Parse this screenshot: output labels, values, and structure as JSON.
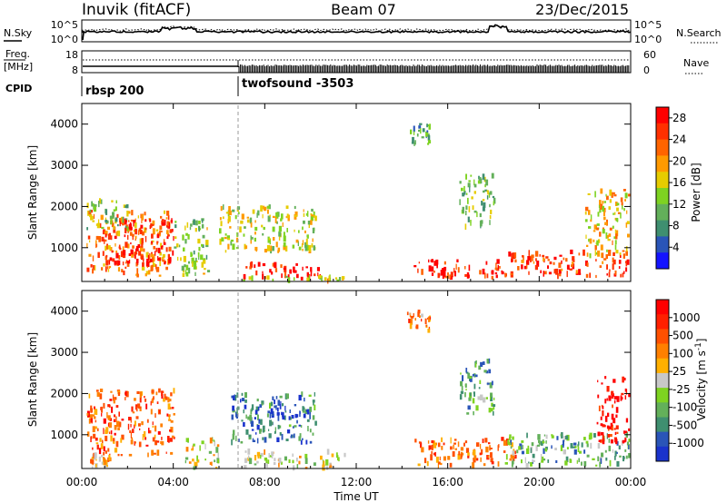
{
  "header": {
    "station": "Inuvik (fitACF)",
    "beam": "Beam 07",
    "date": "23/Dec/2015"
  },
  "noise_panel": {
    "left_label": "N.Sky",
    "right_label": "N.Search",
    "left_ticks": [
      "10^5",
      "10^0"
    ],
    "right_ticks": [
      "10^5",
      "10^0"
    ]
  },
  "freq_panel": {
    "left_label_1": "Freq.",
    "left_label_2": "[MHz]",
    "left_ticks": [
      "18",
      "8"
    ],
    "right_label": "Nave",
    "right_ticks": [
      "60",
      "0"
    ]
  },
  "cpid_panel": {
    "label": "CPID",
    "segments": [
      "rbsp 200",
      "twofsound -3503"
    ]
  },
  "x_axis": {
    "ticks": [
      "00:00",
      "04:00",
      "08:00",
      "12:00",
      "16:00",
      "20:00",
      "00:00"
    ],
    "label": "Time UT"
  },
  "colors": {
    "power": [
      "#1414ff",
      "#2a55b8",
      "#3f8f70",
      "#63b05a",
      "#7ed321",
      "#e6cc00",
      "#ff9a00",
      "#ff6400",
      "#ff3000",
      "#ff0000"
    ],
    "velocity": [
      "#1a33cc",
      "#2a55b8",
      "#3f8f70",
      "#63b05a",
      "#7ed321",
      "#c8c8c8",
      "#ffb000",
      "#ff8000",
      "#ff5000",
      "#ff2000",
      "#ff0000"
    ]
  },
  "chart_data": [
    {
      "type": "heatmap",
      "name": "power",
      "ylabel": "Slant Range [km]",
      "yticks": [
        "4000",
        "3000",
        "2000",
        "1000"
      ],
      "ylim": [
        180,
        4500
      ],
      "xlim_hours": [
        0,
        24
      ],
      "colorbar_label": "Power [dB]",
      "colorbar_ticks": [
        "28",
        "24",
        "20",
        "16",
        "12",
        "8",
        "4"
      ],
      "colorbar_range": [
        0,
        30
      ],
      "blobs": [
        {
          "t0": 0.2,
          "t1": 3.8,
          "r0": 300,
          "r1": 1900,
          "level": 0.7
        },
        {
          "t0": 1.0,
          "t1": 4.0,
          "r0": 600,
          "r1": 1700,
          "level": 0.9
        },
        {
          "t0": 0.2,
          "t1": 2.0,
          "r0": 1450,
          "r1": 2150,
          "level": 0.4
        },
        {
          "t0": 4.0,
          "t1": 5.5,
          "r0": 300,
          "r1": 1700,
          "level": 0.45
        },
        {
          "t0": 6.0,
          "t1": 10.2,
          "r0": 900,
          "r1": 2000,
          "level": 0.5
        },
        {
          "t0": 7.0,
          "t1": 10.5,
          "r0": 250,
          "r1": 600,
          "level": 0.95
        },
        {
          "t0": 6.8,
          "t1": 11.5,
          "r0": 180,
          "r1": 300,
          "level": 0.55
        },
        {
          "t0": 14.5,
          "t1": 18.5,
          "r0": 250,
          "r1": 700,
          "level": 0.9
        },
        {
          "t0": 18.5,
          "t1": 23.9,
          "r0": 300,
          "r1": 900,
          "level": 0.85
        },
        {
          "t0": 22.0,
          "t1": 23.9,
          "r0": 800,
          "r1": 2400,
          "level": 0.6
        },
        {
          "t0": 16.5,
          "t1": 18.0,
          "r0": 1500,
          "r1": 2800,
          "level": 0.4
        },
        {
          "t0": 14.2,
          "t1": 15.2,
          "r0": 3500,
          "r1": 4000,
          "level": 0.35
        }
      ]
    },
    {
      "type": "heatmap",
      "name": "velocity",
      "ylabel": "Slant Range [km]",
      "yticks": [
        "4000",
        "3000",
        "2000",
        "1000"
      ],
      "ylim": [
        180,
        4500
      ],
      "xlim_hours": [
        0,
        24
      ],
      "colorbar_label": "Velocity [m s^-1]",
      "colorbar_ticks": [
        "1000",
        "500",
        "100",
        "25",
        "-25",
        "-100",
        "-500",
        "-1000"
      ],
      "blobs": [
        {
          "t0": 0.2,
          "t1": 4.0,
          "r0": 500,
          "r1": 2100,
          "level": 0.78
        },
        {
          "t0": 0.2,
          "t1": 1.2,
          "r0": 180,
          "r1": 500,
          "level": 0.62
        },
        {
          "t0": 4.5,
          "t1": 6.0,
          "r0": 180,
          "r1": 900,
          "level": 0.5
        },
        {
          "t0": 6.5,
          "t1": 10.2,
          "r0": 800,
          "r1": 2000,
          "level": 0.2
        },
        {
          "t0": 8.0,
          "t1": 10.0,
          "r0": 1400,
          "r1": 1800,
          "level": 0.05
        },
        {
          "t0": 7.0,
          "t1": 11.5,
          "r0": 180,
          "r1": 600,
          "level": 0.5
        },
        {
          "t0": 14.5,
          "t1": 19.0,
          "r0": 250,
          "r1": 900,
          "level": 0.72
        },
        {
          "t0": 18.5,
          "t1": 23.9,
          "r0": 250,
          "r1": 1000,
          "level": 0.32
        },
        {
          "t0": 22.5,
          "t1": 23.9,
          "r0": 800,
          "r1": 2400,
          "level": 0.95
        },
        {
          "t0": 16.5,
          "t1": 18.0,
          "r0": 1500,
          "r1": 2800,
          "level": 0.3
        },
        {
          "t0": 14.2,
          "t1": 15.2,
          "r0": 3500,
          "r1": 4000,
          "level": 0.7
        }
      ]
    }
  ]
}
